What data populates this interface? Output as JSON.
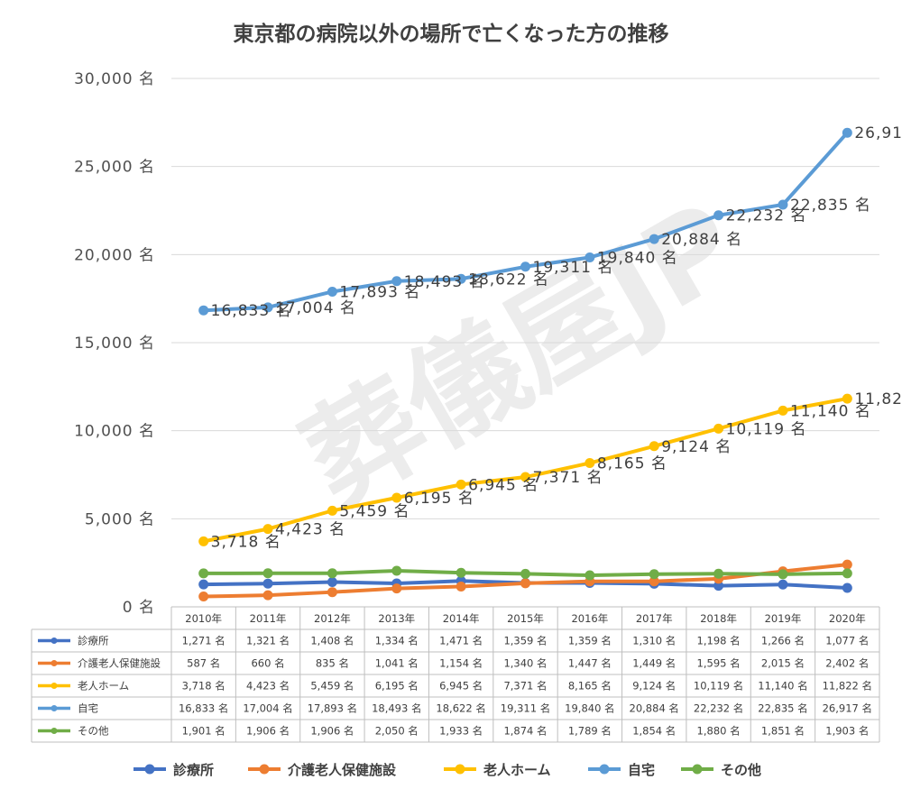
{
  "watermark": "葬儀屋JP",
  "chart_data": {
    "type": "line",
    "title": "東京都の病院以外の場所で亡くなった方の推移",
    "unit": "名",
    "ylim": [
      0,
      30000
    ],
    "y_ticks": [
      "0 名",
      "5,000 名",
      "10,000 名",
      "15,000 名",
      "20,000 名",
      "25,000 名",
      "30,000 名"
    ],
    "categories": [
      "2010年",
      "2011年",
      "2012年",
      "2013年",
      "2014年",
      "2015年",
      "2016年",
      "2017年",
      "2018年",
      "2019年",
      "2020年"
    ],
    "series": [
      {
        "name": "診療所",
        "color": "#4472C4",
        "values": [
          1271,
          1321,
          1408,
          1334,
          1471,
          1359,
          1359,
          1310,
          1198,
          1266,
          1077
        ],
        "labels": [
          "1,271 名",
          "1,321 名",
          "1,408 名",
          "1,334 名",
          "1,471 名",
          "1,359 名",
          "1,359 名",
          "1,310 名",
          "1,198 名",
          "1,266 名",
          "1,077 名"
        ]
      },
      {
        "name": "介護老人保健施設",
        "color": "#ED7D31",
        "values": [
          587,
          660,
          835,
          1041,
          1154,
          1340,
          1447,
          1449,
          1595,
          2015,
          2402
        ],
        "labels": [
          "587 名",
          "660 名",
          "835 名",
          "1,041 名",
          "1,154 名",
          "1,340 名",
          "1,447 名",
          "1,449 名",
          "1,595 名",
          "2,015 名",
          "2,402 名"
        ]
      },
      {
        "name": "老人ホーム",
        "color": "#FFC000",
        "values": [
          3718,
          4423,
          5459,
          6195,
          6945,
          7371,
          8165,
          9124,
          10119,
          11140,
          11822
        ],
        "labels": [
          "3,718 名",
          "4,423 名",
          "5,459 名",
          "6,195 名",
          "6,945 名",
          "7,371 名",
          "8,165 名",
          "9,124 名",
          "10,119 名",
          "11,140 名",
          "11,822 名"
        ]
      },
      {
        "name": "自宅",
        "color": "#5B9BD5",
        "values": [
          16833,
          17004,
          17893,
          18493,
          18622,
          19311,
          19840,
          20884,
          22232,
          22835,
          26917
        ],
        "labels": [
          "16,833 名",
          "17,004 名",
          "17,893 名",
          "18,493 名",
          "18,622 名",
          "19,311 名",
          "19,840 名",
          "20,884 名",
          "22,232 名",
          "22,835 名",
          "26,917 名"
        ]
      },
      {
        "name": "その他",
        "color": "#70AD47",
        "values": [
          1901,
          1906,
          1906,
          2050,
          1933,
          1874,
          1789,
          1854,
          1880,
          1851,
          1903
        ],
        "labels": [
          "1,901 名",
          "1,906 名",
          "1,906 名",
          "2,050 名",
          "1,933 名",
          "1,874 名",
          "1,789 名",
          "1,854 名",
          "1,880 名",
          "1,851 名",
          "1,903 名"
        ]
      }
    ],
    "data_labels_on": [
      "老人ホーム",
      "自宅"
    ],
    "data_table": true,
    "legend": "bottom",
    "grid": true
  }
}
